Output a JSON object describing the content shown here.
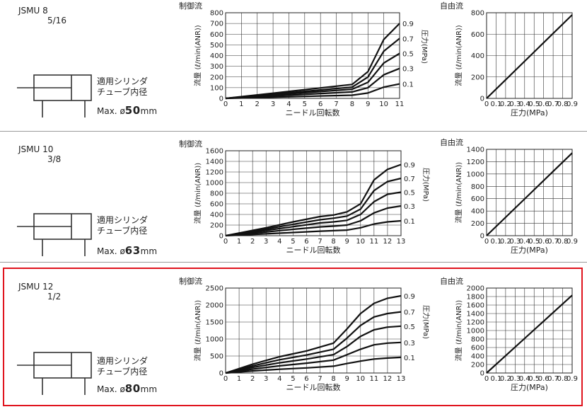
{
  "chart_data": [
    {
      "model": "JSMU 8",
      "size": "5/16",
      "cylinder_label": [
        "適用シリンダ",
        "チューブ内径"
      ],
      "max_prefix": "Max. ø",
      "max_value": "50",
      "max_unit": "mm",
      "controlled": {
        "type": "line",
        "title": "制御流",
        "xlabel": "ニードル回転数",
        "ylabel": "流量 (ℓ/min(ANR))",
        "right_label": "圧力(MPa)",
        "xlim": [
          0,
          11
        ],
        "ylim": [
          0,
          800
        ],
        "ystep": 100,
        "yticks": [
          "0",
          "100",
          "200",
          "300",
          "400",
          "500",
          "600",
          "700",
          "800"
        ],
        "xticks": [
          "0",
          "1",
          "2",
          "3",
          "4",
          "5",
          "6",
          "7",
          "8",
          "9",
          "10",
          "11"
        ],
        "series": [
          {
            "name": "0.9",
            "x": [
              0,
              8,
              9,
              10,
              11
            ],
            "y": [
              0,
              130,
              250,
              550,
              700
            ]
          },
          {
            "name": "0.7",
            "x": [
              0,
              8,
              9,
              10,
              11
            ],
            "y": [
              0,
              105,
              200,
              440,
              560
            ]
          },
          {
            "name": "0.5",
            "x": [
              0,
              8,
              9,
              10,
              11
            ],
            "y": [
              0,
              85,
              150,
              330,
              420
            ]
          },
          {
            "name": "0.3",
            "x": [
              0,
              8,
              9,
              10,
              11
            ],
            "y": [
              0,
              60,
              100,
              220,
              280
            ]
          },
          {
            "name": "0.1",
            "x": [
              0,
              8,
              9,
              10,
              11
            ],
            "y": [
              0,
              30,
              50,
              105,
              135
            ]
          }
        ]
      },
      "free": {
        "type": "line",
        "title": "自由流",
        "xlabel": "圧力(MPa)",
        "ylabel": "流量 (ℓ/min(ANR))",
        "xlim": [
          0,
          0.9
        ],
        "ylim": [
          0,
          800
        ],
        "ystep": 200,
        "yticks": [
          "0",
          "200",
          "400",
          "600",
          "800"
        ],
        "xticks": [
          "0",
          "0.1",
          "0.2",
          "0.3",
          "0.4",
          "0.5",
          "0.6",
          "0.7",
          "0.8",
          "0.9"
        ],
        "series": [
          {
            "x": [
              0,
              0.9
            ],
            "y": [
              0,
              780
            ]
          }
        ]
      }
    },
    {
      "model": "JSMU 10",
      "size": "3/8",
      "cylinder_label": [
        "適用シリンダ",
        "チューブ内径"
      ],
      "max_prefix": "Max. ø",
      "max_value": "63",
      "max_unit": "mm",
      "controlled": {
        "type": "line",
        "title": "制御流",
        "xlabel": "ニードル回転数",
        "ylabel": "流量 (ℓ/min(ANR))",
        "right_label": "圧力(MPa)",
        "xlim": [
          0,
          13
        ],
        "ylim": [
          0,
          1600
        ],
        "ystep": 200,
        "yticks": [
          "0",
          "200",
          "400",
          "600",
          "800",
          "1000",
          "1200",
          "1400",
          "1600"
        ],
        "xticks": [
          "0",
          "1",
          "2",
          "3",
          "4",
          "5",
          "6",
          "7",
          "8",
          "9",
          "10",
          "11",
          "12",
          "13"
        ],
        "series": [
          {
            "name": "0.9",
            "x": [
              0,
              3,
              5,
              7,
              8,
              9,
              10,
              11,
              12,
              13
            ],
            "y": [
              0,
              150,
              260,
              360,
              390,
              450,
              600,
              1050,
              1250,
              1340
            ]
          },
          {
            "name": "0.7",
            "x": [
              0,
              3,
              5,
              7,
              8,
              9,
              10,
              11,
              12,
              13
            ],
            "y": [
              0,
              125,
              215,
              300,
              330,
              370,
              500,
              850,
              1020,
              1080
            ]
          },
          {
            "name": "0.5",
            "x": [
              0,
              3,
              5,
              7,
              8,
              9,
              10,
              11,
              12,
              13
            ],
            "y": [
              0,
              100,
              170,
              240,
              260,
              290,
              400,
              640,
              780,
              820
            ]
          },
          {
            "name": "0.3",
            "x": [
              0,
              3,
              5,
              7,
              8,
              9,
              10,
              11,
              12,
              13
            ],
            "y": [
              0,
              70,
              120,
              165,
              180,
              200,
              280,
              430,
              520,
              560
            ]
          },
          {
            "name": "0.1",
            "x": [
              0,
              3,
              5,
              7,
              8,
              9,
              10,
              11,
              12,
              13
            ],
            "y": [
              0,
              35,
              60,
              85,
              95,
              105,
              150,
              220,
              260,
              280
            ]
          }
        ]
      },
      "free": {
        "type": "line",
        "title": "自由流",
        "xlabel": "圧力(MPa)",
        "ylabel": "流量 (ℓ/min(ANR))",
        "xlim": [
          0,
          0.9
        ],
        "ylim": [
          0,
          1400
        ],
        "ystep": 200,
        "yticks": [
          "0",
          "200",
          "400",
          "600",
          "800",
          "1000",
          "1200",
          "1400"
        ],
        "xticks": [
          "0",
          "0.1",
          "0.2",
          "0.3",
          "0.4",
          "0.5",
          "0.6",
          "0.7",
          "0.8",
          "0.9"
        ],
        "series": [
          {
            "x": [
              0,
              0.9
            ],
            "y": [
              0,
              1340
            ]
          }
        ]
      }
    },
    {
      "model": "JSMU 12",
      "size": "1/2",
      "cylinder_label": [
        "適用シリンダ",
        "チューブ内径"
      ],
      "max_prefix": "Max. ø",
      "max_value": "80",
      "max_unit": "mm",
      "controlled": {
        "type": "line",
        "title": "制御流",
        "xlabel": "ニードル回転数",
        "ylabel": "流量 (ℓ/min(ANR))",
        "right_label": "圧力(MPa)",
        "xlim": [
          0,
          13
        ],
        "ylim": [
          0,
          2500
        ],
        "ystep": 500,
        "yticks": [
          "0",
          "500",
          "1000",
          "1500",
          "2000",
          "2500"
        ],
        "xticks": [
          "0",
          "1",
          "2",
          "3",
          "4",
          "5",
          "6",
          "7",
          "8",
          "9",
          "10",
          "11",
          "12",
          "13"
        ],
        "series": [
          {
            "name": "0.9",
            "x": [
              0,
              2,
              4,
              6,
              8,
              9,
              10,
              11,
              12,
              13
            ],
            "y": [
              0,
              260,
              480,
              650,
              880,
              1300,
              1750,
              2050,
              2200,
              2270
            ]
          },
          {
            "name": "0.7",
            "x": [
              0,
              2,
              4,
              6,
              8,
              9,
              10,
              11,
              12,
              13
            ],
            "y": [
              0,
              210,
              390,
              530,
              700,
              1030,
              1400,
              1650,
              1750,
              1800
            ]
          },
          {
            "name": "0.5",
            "x": [
              0,
              2,
              4,
              6,
              8,
              9,
              10,
              11,
              12,
              13
            ],
            "y": [
              0,
              165,
              300,
              410,
              540,
              780,
              1080,
              1270,
              1350,
              1380
            ]
          },
          {
            "name": "0.3",
            "x": [
              0,
              2,
              4,
              6,
              8,
              9,
              10,
              11,
              12,
              13
            ],
            "y": [
              0,
              115,
              210,
              290,
              380,
              540,
              700,
              830,
              880,
              900
            ]
          },
          {
            "name": "0.1",
            "x": [
              0,
              2,
              4,
              6,
              8,
              9,
              10,
              11,
              12,
              13
            ],
            "y": [
              0,
              60,
              110,
              150,
              200,
              280,
              350,
              410,
              440,
              460
            ]
          }
        ]
      },
      "free": {
        "type": "line",
        "title": "自由流",
        "xlabel": "圧力(MPa)",
        "ylabel": "流量 (ℓ/min(ANR))",
        "xlim": [
          0,
          0.9
        ],
        "ylim": [
          0,
          2000
        ],
        "ystep": 200,
        "yticks": [
          "0",
          "200",
          "400",
          "600",
          "800",
          "1000",
          "1200",
          "1400",
          "1600",
          "1800",
          "2000"
        ],
        "xticks": [
          "0",
          "0.1",
          "0.2",
          "0.3",
          "0.4",
          "0.5",
          "0.6",
          "0.7",
          "0.8",
          "0.9"
        ],
        "series": [
          {
            "x": [
              0,
              0.9
            ],
            "y": [
              0,
              1830
            ]
          }
        ]
      }
    }
  ]
}
